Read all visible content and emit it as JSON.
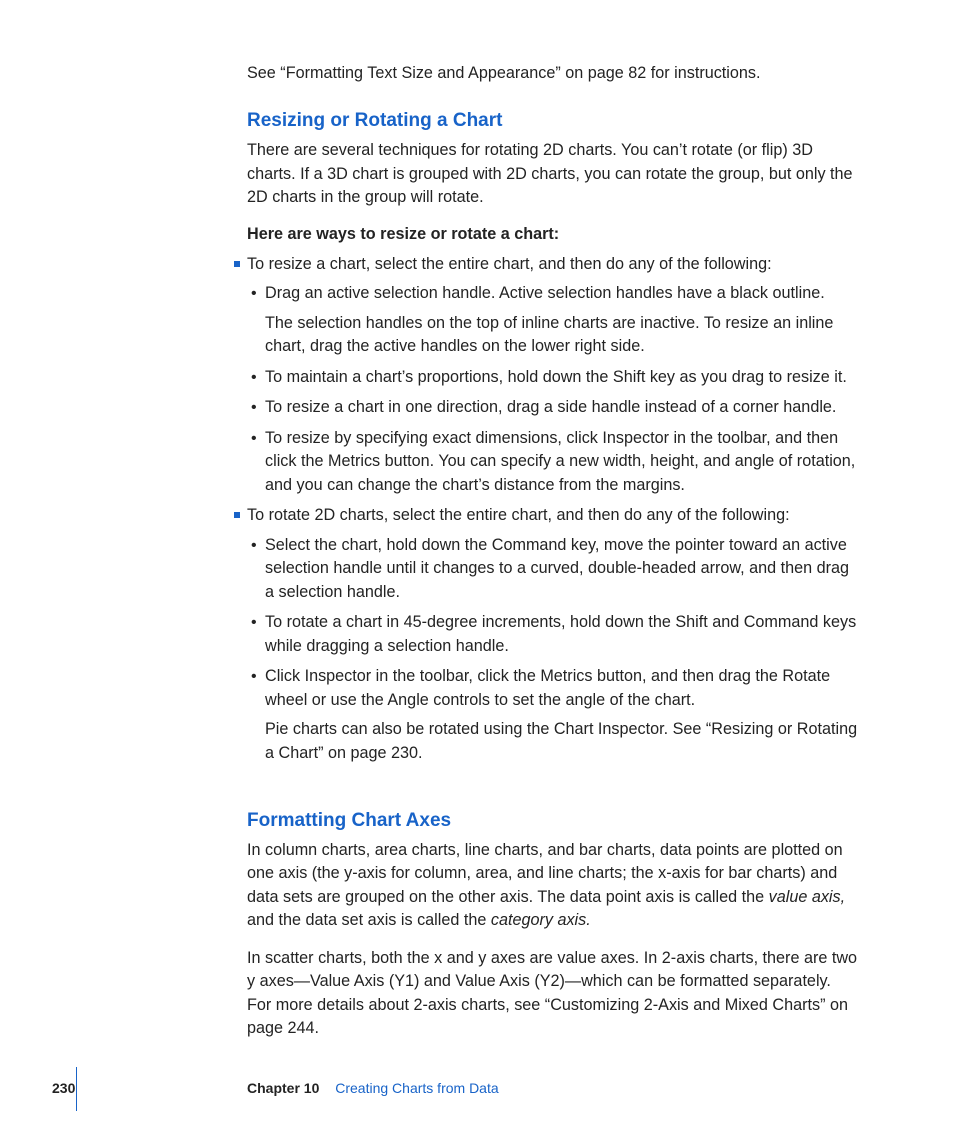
{
  "colors": {
    "heading_blue": "#1863c8",
    "body_text": "#232323",
    "background": "#ffffff"
  },
  "typography": {
    "body_fontsize_pt": 12,
    "heading_fontsize_pt": 14,
    "footer_fontsize_pt": 10,
    "body_lineheight": 1.45,
    "heading_weight": 600,
    "subhead_weight": 700
  },
  "intro": "See “Formatting Text Size and Appearance” on page 82 for instructions.",
  "section1": {
    "heading": "Resizing or Rotating a Chart",
    "para": "There are several techniques for rotating 2D charts. You can’t rotate (or flip) 3D charts. If a 3D chart is grouped with 2D charts, you can rotate the group, but only the 2D charts in the group will rotate.",
    "subhead": "Here are ways to resize or rotate a chart:",
    "item1": {
      "lead": "To resize a chart, select the entire chart, and then do any of the following:",
      "sub1a": "Drag an active selection handle. Active selection handles have a black outline.",
      "sub1b": "The selection handles on the top of inline charts are inactive. To resize an inline chart, drag the active handles on the lower right side.",
      "sub2": "To maintain a chart’s proportions, hold down the Shift key as you drag to resize it.",
      "sub3": "To resize a chart in one direction, drag a side handle instead of a corner handle.",
      "sub4": "To resize by specifying exact dimensions, click Inspector in the toolbar, and then click the Metrics button. You can specify a new width, height, and angle of rotation, and you can change the chart’s distance from the margins."
    },
    "item2": {
      "lead": "To rotate 2D charts, select the entire chart, and then do any of the following:",
      "sub1": "Select the chart, hold down the Command key, move the pointer toward an active selection handle until it changes to a curved, double-headed arrow, and then drag a selection handle.",
      "sub2": "To rotate a chart in 45-degree increments, hold down the Shift and Command keys while dragging a selection handle.",
      "sub3a": "Click Inspector in the toolbar, click the Metrics button, and then drag the Rotate wheel or use the Angle controls to set the angle of the chart.",
      "sub3b": "Pie charts can also be rotated using the Chart Inspector. See “Resizing or Rotating a Chart” on page 230."
    }
  },
  "section2": {
    "heading": "Formatting Chart Axes",
    "para2": "In scatter charts, both the x and y axes are value axes. In 2-axis charts, there are two y axes—Value Axis (Y1) and Value Axis (Y2)—which can be formatted separately. For more details about 2-axis charts, see “Customizing 2-Axis and Mixed Charts” on page 244."
  },
  "footer": {
    "page_number": "230",
    "chapter_label": "Chapter 10",
    "chapter_title": "Creating Charts from Data"
  }
}
